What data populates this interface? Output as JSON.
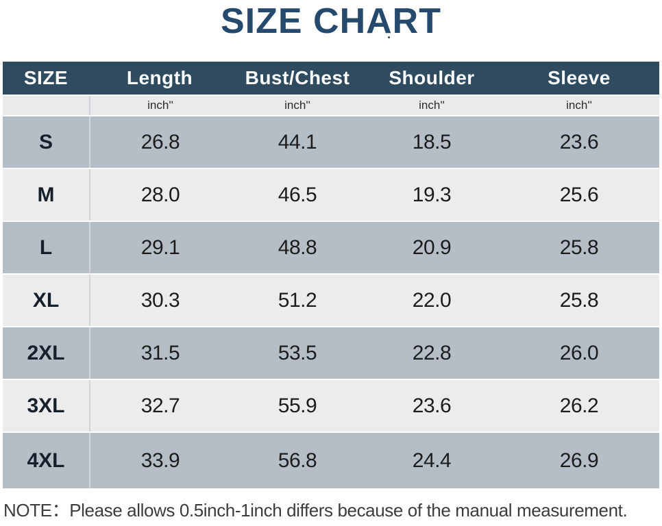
{
  "title": {
    "text": "SIZE CHART"
  },
  "table": {
    "columns": [
      "SIZE",
      "Length",
      "Bust/Chest",
      "Shoulder",
      "Sleeve"
    ],
    "unit_row": [
      "",
      "inch''",
      "inch''",
      "inch''",
      "inch''"
    ],
    "rows": [
      {
        "size": "S",
        "values": [
          "26.8",
          "44.1",
          "18.5",
          "23.6"
        ]
      },
      {
        "size": "M",
        "values": [
          "28.0",
          "46.5",
          "19.3",
          "25.6"
        ]
      },
      {
        "size": "L",
        "values": [
          "29.1",
          "48.8",
          "20.9",
          "25.8"
        ]
      },
      {
        "size": "XL",
        "values": [
          "30.3",
          "51.2",
          "22.0",
          "25.8"
        ]
      },
      {
        "size": "2XL",
        "values": [
          "31.5",
          "53.5",
          "22.8",
          "26.0"
        ]
      },
      {
        "size": "3XL",
        "values": [
          "32.7",
          "55.9",
          "23.6",
          "26.2"
        ]
      },
      {
        "size": "4XL",
        "values": [
          "33.9",
          "56.8",
          "24.4",
          "26.9"
        ]
      }
    ]
  },
  "note": {
    "text": "NOTE：Please allows 0.5inch-1inch differs because of the manual measurement."
  },
  "chart_data": {
    "type": "table",
    "title": "SIZE CHART",
    "unit": "inch''",
    "columns": [
      "SIZE",
      "Length",
      "Bust/Chest",
      "Shoulder",
      "Sleeve"
    ],
    "rows": [
      [
        "S",
        26.8,
        44.1,
        18.5,
        23.6
      ],
      [
        "M",
        28.0,
        46.5,
        19.3,
        25.6
      ],
      [
        "L",
        29.1,
        48.8,
        20.9,
        25.8
      ],
      [
        "XL",
        30.3,
        51.2,
        22.0,
        25.8
      ],
      [
        "2XL",
        31.5,
        53.5,
        22.8,
        26.0
      ],
      [
        "3XL",
        32.7,
        55.9,
        23.6,
        26.2
      ],
      [
        "4XL",
        33.9,
        56.8,
        24.4,
        26.9
      ]
    ],
    "note": "NOTE：Please allows 0.5inch-1inch differs because of the manual measurement."
  },
  "colors": {
    "title": "#26496e",
    "header_bg": "#2e4b60",
    "header_text": "#fafbfc",
    "row_dark": "#b5bec7",
    "row_light": "#ececed",
    "unit_row_bg": "#e9eaeb",
    "divider": "#cfd5d9",
    "note_text": "#3c3c3c"
  }
}
